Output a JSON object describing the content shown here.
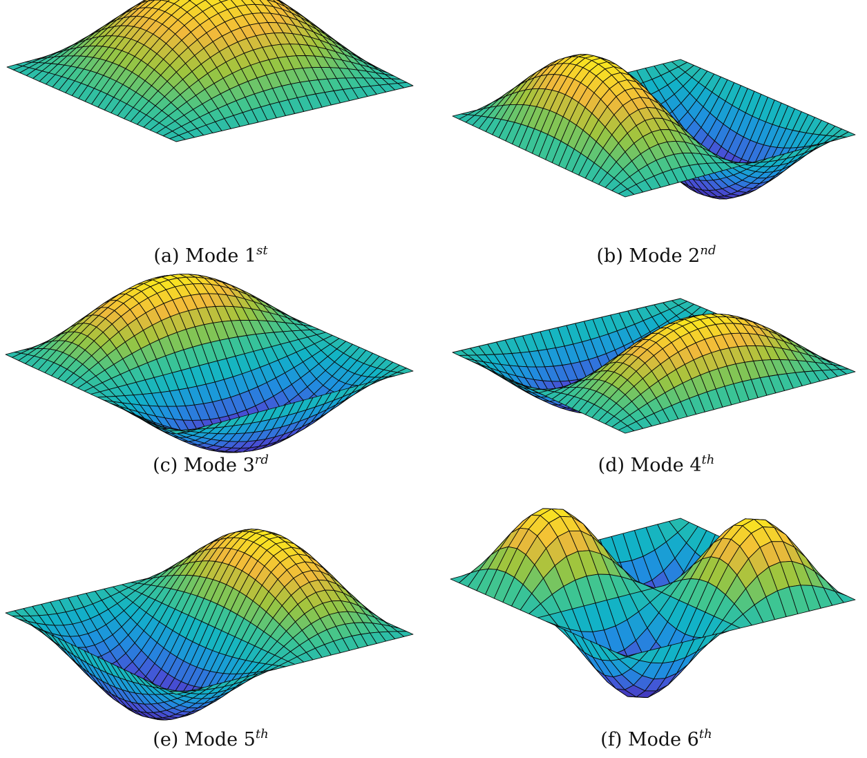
{
  "figure": {
    "colormap": [
      "#3e26a8",
      "#4751d6",
      "#1f8fe0",
      "#12b3c6",
      "#3ec592",
      "#9dc53e",
      "#f1b93b",
      "#f9e81f"
    ],
    "mesh_line_color": "#0a0a0a",
    "panels": [
      {
        "caption_prefix": "(a) Mode 1",
        "caption_sup": "st",
        "mode_shape": "sin(pi x) sin(pi y)",
        "m": 1,
        "n": 1
      },
      {
        "caption_prefix": "(b) Mode 2",
        "caption_sup": "nd",
        "mode_shape": "sin(pi x) sin(2 pi y)",
        "m": 1,
        "n": 2
      },
      {
        "caption_prefix": "(c) Mode 3",
        "caption_sup": "rd",
        "mode_shape": "sin(2 pi x) sin(pi y)",
        "m": 2,
        "n": 1
      },
      {
        "caption_prefix": "(d) Mode 4",
        "caption_sup": "th",
        "mode_shape": "sin(2 pi x) sin(pi y)",
        "m": 2,
        "n": 1
      },
      {
        "caption_prefix": "(e) Mode 5",
        "caption_sup": "th",
        "mode_shape": "sin(pi x) sin(2 pi y)",
        "m": 1,
        "n": 2
      },
      {
        "caption_prefix": "(f) Mode 6",
        "caption_sup": "th",
        "mode_shape": "sin(2 pi x) sin(2 pi y)",
        "m": 2,
        "n": 2
      }
    ]
  },
  "chart_data": [
    {
      "type": "surface",
      "title": "(a) Mode 1st",
      "function": "sin(pi x) sin(pi y)",
      "x_range": [
        0,
        1
      ],
      "y_range": [
        0,
        1
      ],
      "z_range": [
        -1,
        1
      ],
      "grid": "mesh"
    },
    {
      "type": "surface",
      "title": "(b) Mode 2nd",
      "function": "sin(pi x) sin(2 pi y)",
      "x_range": [
        0,
        1
      ],
      "y_range": [
        0,
        1
      ],
      "z_range": [
        -1,
        1
      ],
      "grid": "mesh"
    },
    {
      "type": "surface",
      "title": "(c) Mode 3rd",
      "function": "sin(2 pi x) sin(pi y)",
      "x_range": [
        0,
        1
      ],
      "y_range": [
        0,
        1
      ],
      "z_range": [
        -1,
        1
      ],
      "grid": "mesh"
    },
    {
      "type": "surface",
      "title": "(d) Mode 4th",
      "function": "sin(2 pi x) sin(pi y)",
      "x_range": [
        0,
        1
      ],
      "y_range": [
        0,
        1
      ],
      "z_range": [
        -1,
        1
      ],
      "grid": "mesh"
    },
    {
      "type": "surface",
      "title": "(e) Mode 5th",
      "function": "sin(pi x) sin(2 pi y)",
      "x_range": [
        0,
        1
      ],
      "y_range": [
        0,
        1
      ],
      "z_range": [
        -1,
        1
      ],
      "grid": "mesh"
    },
    {
      "type": "surface",
      "title": "(f) Mode 6th",
      "function": "sin(2 pi x) sin(2 pi y)",
      "x_range": [
        0,
        1
      ],
      "y_range": [
        0,
        1
      ],
      "z_range": [
        -1,
        1
      ],
      "grid": "mesh"
    }
  ]
}
